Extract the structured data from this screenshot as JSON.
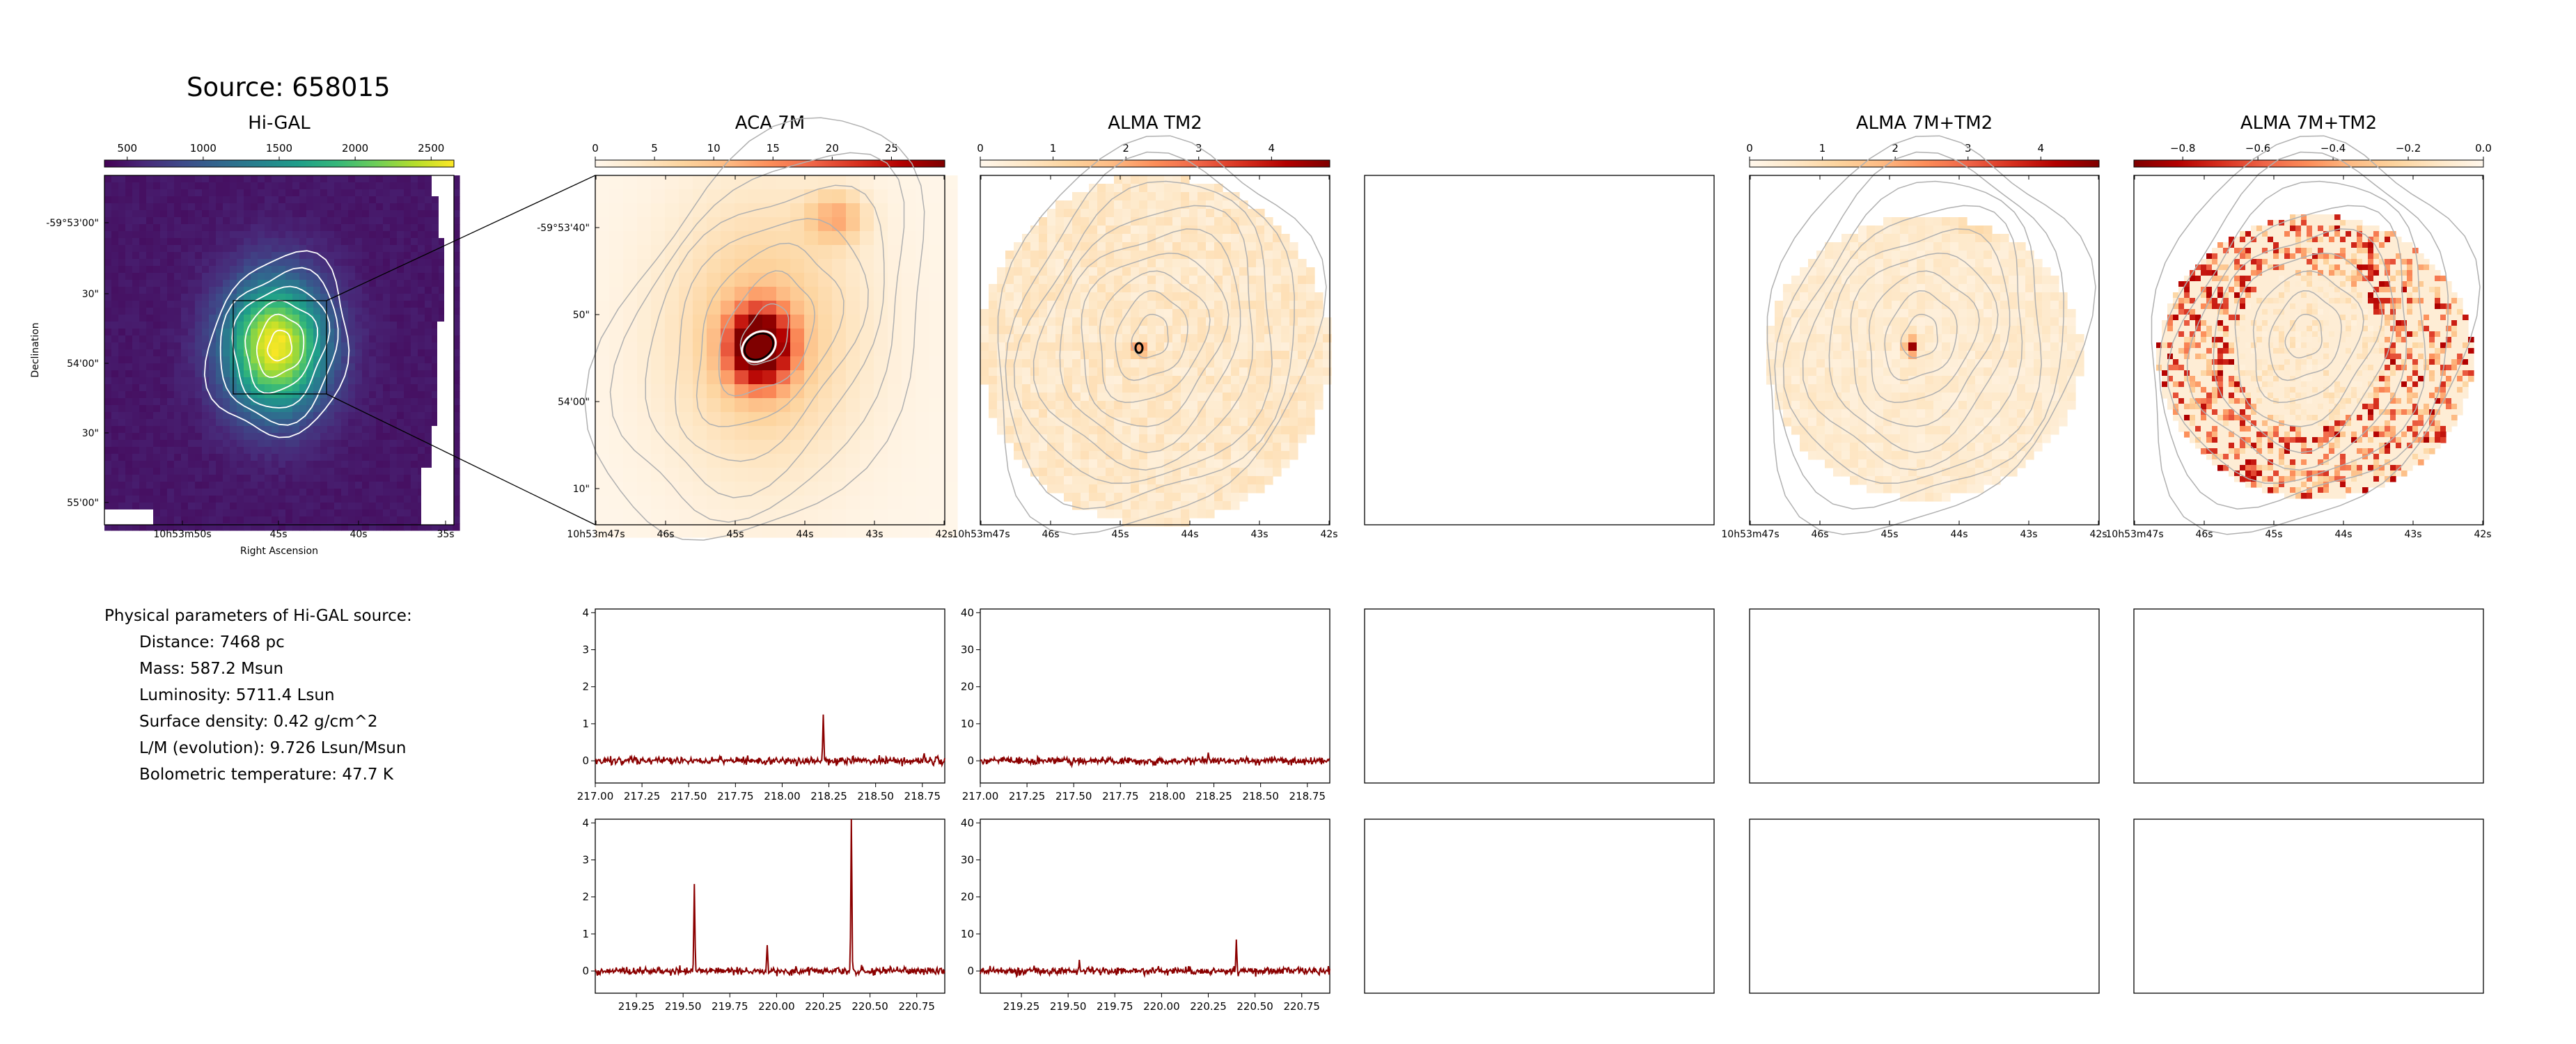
{
  "source_title": "Source: 658015",
  "params": {
    "header": "Physical parameters of Hi-GAL source:",
    "items": [
      "Distance: 7468 pc",
      "Mass: 587.2 Msun",
      "Luminosity: 5711.4 Lsun",
      "Surface density: 0.42 g/cm^2",
      "L/M (evolution): 9.726 Lsun/Msun",
      "Bolometric temperature: 47.7 K"
    ]
  },
  "colors": {
    "viridis": [
      "#440154",
      "#482878",
      "#3e4a89",
      "#31688e",
      "#26828e",
      "#1f9e89",
      "#35b779",
      "#6ece58",
      "#b5de2b",
      "#fde725"
    ],
    "orrd": [
      "#fff7ec",
      "#fee8c8",
      "#fdd49e",
      "#fdbb84",
      "#fc8d59",
      "#ef6548",
      "#d7301f",
      "#b30000",
      "#7f0000"
    ],
    "spectrum": "#8b0000",
    "contour_gray": "#b0b0b0",
    "contour_white": "#ffffff"
  },
  "chart_data": [
    {
      "id": "higal",
      "type": "heatmap",
      "title": "Hi-GAL",
      "colormap": "viridis",
      "colorbar": {
        "range": [
          350,
          2650
        ],
        "ticks": [
          500,
          1000,
          1500,
          2000,
          2500
        ],
        "tick_labels": [
          "500",
          "1000",
          "1500",
          "2000",
          "2500"
        ]
      },
      "xlabel": "Right Ascension",
      "ylabel": "Declination",
      "xticks": [
        "10h53m50s",
        "45s",
        "40s",
        "35s"
      ],
      "yticks": [
        "-59°53'00\"",
        "30\"",
        "54'00\"",
        "30\"",
        "55'00\""
      ]
    },
    {
      "id": "aca7m",
      "type": "heatmap",
      "title": "ACA 7M",
      "colormap": "orrd",
      "colorbar": {
        "range": [
          0,
          29.5
        ],
        "ticks": [
          0,
          5,
          10,
          15,
          20,
          25
        ],
        "tick_labels": [
          "0",
          "5",
          "10",
          "15",
          "20",
          "25"
        ]
      },
      "xticks": [
        "10h53m47s",
        "46s",
        "45s",
        "44s",
        "43s",
        "42s"
      ],
      "yticks": [
        "-59°53'40\"",
        "50\"",
        "54'00\"",
        "10\""
      ]
    },
    {
      "id": "tm2",
      "type": "heatmap",
      "title": "ALMA TM2",
      "colormap": "orrd",
      "colorbar": {
        "range": [
          0,
          4.8
        ],
        "ticks": [
          0,
          1,
          2,
          3,
          4
        ],
        "tick_labels": [
          "0",
          "1",
          "2",
          "3",
          "4"
        ]
      },
      "xticks": [
        "10h53m47s",
        "46s",
        "45s",
        "44s",
        "43s",
        "42s"
      ]
    },
    {
      "id": "combo",
      "type": "heatmap",
      "title": "ALMA 7M+TM2",
      "colormap": "orrd",
      "colorbar": {
        "range": [
          0,
          4.8
        ],
        "ticks": [
          0,
          1,
          2,
          3,
          4
        ],
        "tick_labels": [
          "0",
          "1",
          "2",
          "3",
          "4"
        ]
      },
      "xticks": [
        "10h53m47s",
        "46s",
        "45s",
        "44s",
        "43s",
        "42s"
      ]
    },
    {
      "id": "combo_neg",
      "type": "heatmap",
      "title": "ALMA 7M+TM2",
      "colormap": "orrd_reversed",
      "colorbar": {
        "range": [
          -0.93,
          0.0
        ],
        "ticks": [
          -0.8,
          -0.6,
          -0.4,
          -0.2,
          0.0
        ],
        "tick_labels": [
          "−0.8",
          "−0.6",
          "−0.4",
          "−0.2",
          "0.0"
        ]
      },
      "xticks": [
        "10h53m47s",
        "46s",
        "45s",
        "44s",
        "43s",
        "42s"
      ]
    },
    {
      "id": "spec_aca_low",
      "type": "line",
      "xlim": [
        217.0,
        218.87
      ],
      "ylim": [
        -0.6,
        4.1
      ],
      "xticks": [
        217.0,
        217.25,
        217.5,
        217.75,
        218.0,
        218.25,
        218.5,
        218.75
      ],
      "xtick_labels": [
        "217.00",
        "217.25",
        "217.50",
        "217.75",
        "218.00",
        "218.25",
        "218.50",
        "218.75"
      ],
      "yticks": [
        0,
        1,
        2,
        3,
        4
      ],
      "ytick_labels": [
        "0",
        "1",
        "2",
        "3",
        "4"
      ],
      "lines": [
        {
          "x": 218.22,
          "y": 1.25
        },
        {
          "x": 218.52,
          "y": 0.15
        },
        {
          "x": 218.76,
          "y": 0.2
        }
      ],
      "noise": 0.05
    },
    {
      "id": "spec_tm2_low",
      "type": "line",
      "xlim": [
        217.0,
        218.87
      ],
      "ylim": [
        -6,
        41
      ],
      "xticks": [
        217.0,
        217.25,
        217.5,
        217.75,
        218.0,
        218.25,
        218.5,
        218.75
      ],
      "xtick_labels": [
        "217.00",
        "217.25",
        "217.50",
        "217.75",
        "218.00",
        "218.25",
        "218.50",
        "218.75"
      ],
      "yticks": [
        0,
        10,
        20,
        30,
        40
      ],
      "ytick_labels": [
        "0",
        "10",
        "20",
        "30",
        "40"
      ],
      "lines": [
        {
          "x": 218.22,
          "y": 2.2
        }
      ],
      "noise": 0.5
    },
    {
      "id": "spec_aca_high",
      "type": "line",
      "xlim": [
        219.03,
        220.9
      ],
      "ylim": [
        -0.6,
        4.1
      ],
      "xticks": [
        219.25,
        219.5,
        219.75,
        220.0,
        220.25,
        220.5,
        220.75
      ],
      "xtick_labels": [
        "219.25",
        "219.50",
        "219.75",
        "220.00",
        "220.25",
        "220.50",
        "220.75"
      ],
      "yticks": [
        0,
        1,
        2,
        3,
        4
      ],
      "ytick_labels": [
        "0",
        "1",
        "2",
        "3",
        "4"
      ],
      "lines": [
        {
          "x": 219.56,
          "y": 2.35
        },
        {
          "x": 219.95,
          "y": 0.7
        },
        {
          "x": 220.4,
          "y": 4.1
        }
      ],
      "noise": 0.05
    },
    {
      "id": "spec_tm2_high",
      "type": "line",
      "xlim": [
        219.03,
        220.9
      ],
      "ylim": [
        -6,
        41
      ],
      "xticks": [
        219.25,
        219.5,
        219.75,
        220.0,
        220.25,
        220.5,
        220.75
      ],
      "xtick_labels": [
        "219.25",
        "219.50",
        "219.75",
        "220.00",
        "220.25",
        "220.50",
        "220.75"
      ],
      "yticks": [
        0,
        10,
        20,
        30,
        40
      ],
      "ytick_labels": [
        "0",
        "10",
        "20",
        "30",
        "40"
      ],
      "lines": [
        {
          "x": 219.56,
          "y": 3.0
        },
        {
          "x": 219.95,
          "y": 0.8
        },
        {
          "x": 220.4,
          "y": 8.5
        }
      ],
      "noise": 0.5
    }
  ]
}
